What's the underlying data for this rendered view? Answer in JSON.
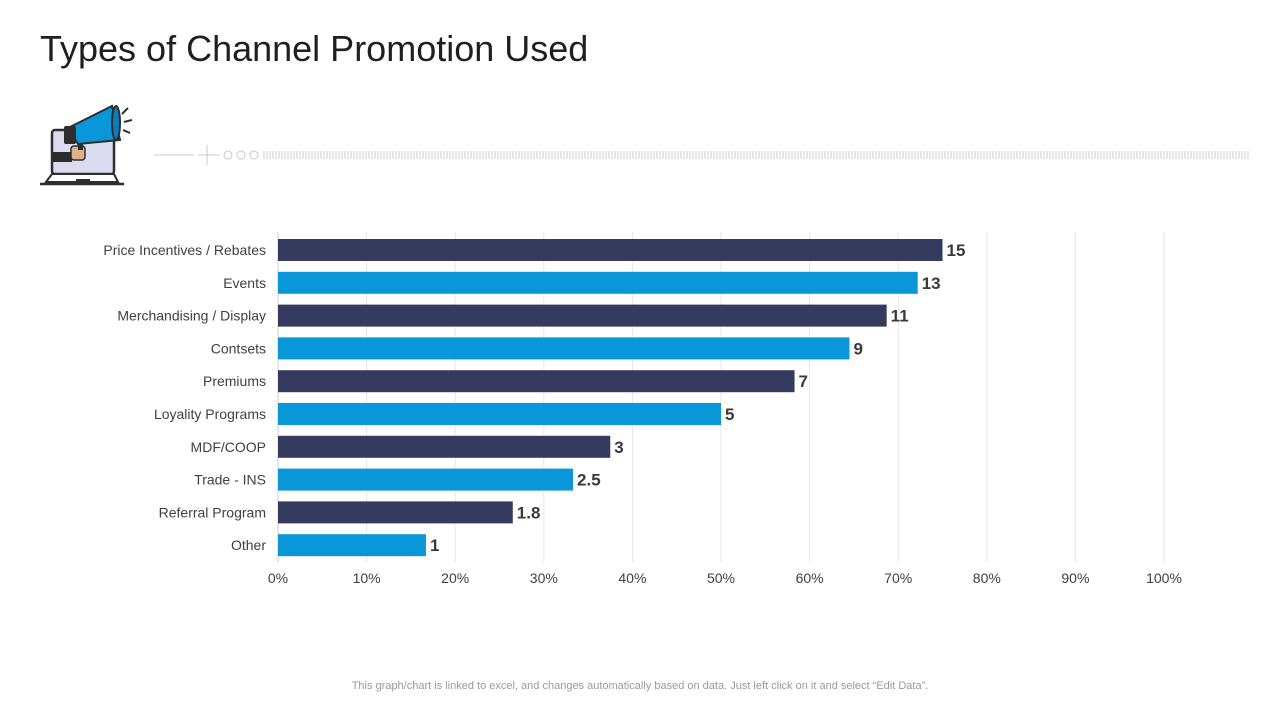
{
  "page": {
    "title": "Types of Channel Promotion Used",
    "footer": "This graph/chart is linked to excel,  and changes automatically based on data. Just left click on it and select “Edit Data”."
  },
  "icons": {
    "header_icon": "laptop-megaphone-icon",
    "divider": "dotted-divider-line"
  },
  "colors": {
    "dark": "#353b5e",
    "blue": "#0a97d9",
    "grid": "#e6e6e6",
    "axis": "#cccccc",
    "label": "#404040",
    "value": "#3a3a3a"
  },
  "chart_data": {
    "type": "bar",
    "orientation": "horizontal",
    "title": "",
    "xlabel": "",
    "ylabel": "",
    "categories": [
      "Price Incentives / Rebates",
      "Events",
      "Merchandising / Display",
      "Contsets",
      "Premiums",
      "Loyality Programs",
      "MDF/COOP",
      "Trade - INS",
      "Referral Program",
      "Other"
    ],
    "values": [
      0.75,
      0.722,
      0.687,
      0.645,
      0.583,
      0.5,
      0.375,
      0.333,
      0.265,
      0.167
    ],
    "data_labels": [
      "15",
      "13",
      "11",
      "9",
      "7",
      "5",
      "3",
      "2.5",
      "1.8",
      "1"
    ],
    "xlim": [
      0,
      1
    ],
    "x_ticks": [
      "0%",
      "10%",
      "20%",
      "30%",
      "40%",
      "50%",
      "60%",
      "70%",
      "80%",
      "90%",
      "100%"
    ],
    "bar_colors": [
      "#353b5e",
      "#0a97d9",
      "#353b5e",
      "#0a97d9",
      "#353b5e",
      "#0a97d9",
      "#353b5e",
      "#0a97d9",
      "#353b5e",
      "#0a97d9"
    ],
    "grid": "vertical",
    "legend": "none"
  }
}
